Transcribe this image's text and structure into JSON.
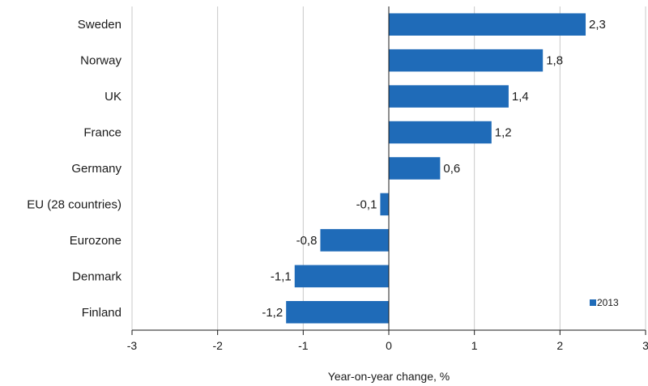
{
  "chart_data": {
    "type": "bar",
    "orientation": "horizontal",
    "categories": [
      "Sweden",
      "Norway",
      "UK",
      "France",
      "Germany",
      "EU (28 countries)",
      "Eurozone",
      "Denmark",
      "Finland"
    ],
    "series": [
      {
        "name": "2013",
        "values": [
          2.3,
          1.8,
          1.4,
          1.2,
          0.6,
          -0.1,
          -0.8,
          -1.1,
          -1.2
        ]
      }
    ],
    "value_labels": [
      "2,3",
      "1,8",
      "1,4",
      "1,2",
      "0,6",
      "-0,1",
      "-0,8",
      "-1,1",
      "-1,2"
    ],
    "xlim": [
      -3,
      3
    ],
    "xticks": [
      -3,
      -2,
      -1,
      0,
      1,
      2,
      3
    ],
    "xtick_labels": [
      "-3",
      "-2",
      "-1",
      "0",
      "1",
      "2",
      "3"
    ],
    "xlabel": "Year-on-year change, %",
    "title": "",
    "grid": "vertical",
    "legend_position": "bottom-right",
    "colors": {
      "bar": "#1f6bb8",
      "grid": "#c8c8c8",
      "axis": "#1a1a1a"
    }
  }
}
